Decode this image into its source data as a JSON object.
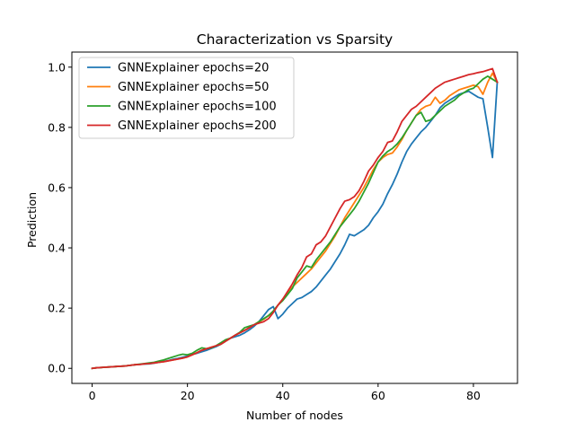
{
  "chart_data": {
    "type": "line",
    "title": "Characterization vs Sparsity",
    "xlabel": "Number of nodes",
    "ylabel": "Prediction",
    "xlim": [
      -4.25,
      89.25
    ],
    "ylim": [
      -0.05,
      1.05
    ],
    "xticks": [
      0,
      20,
      40,
      60,
      80
    ],
    "yticks": [
      0.0,
      0.2,
      0.4,
      0.6,
      0.8,
      1.0
    ],
    "xtick_labels": [
      "0",
      "20",
      "40",
      "60",
      "80"
    ],
    "ytick_labels": [
      "0.0",
      "0.2",
      "0.4",
      "0.6",
      "0.8",
      "1.0"
    ],
    "grid": false,
    "legend_position": "upper-left",
    "x": [
      0,
      1,
      2,
      3,
      4,
      5,
      6,
      7,
      8,
      9,
      10,
      11,
      12,
      13,
      14,
      15,
      16,
      17,
      18,
      19,
      20,
      21,
      22,
      23,
      24,
      25,
      26,
      27,
      28,
      29,
      30,
      31,
      32,
      33,
      34,
      35,
      36,
      37,
      38,
      39,
      40,
      41,
      42,
      43,
      44,
      45,
      46,
      47,
      48,
      49,
      50,
      51,
      52,
      53,
      54,
      55,
      56,
      57,
      58,
      59,
      60,
      61,
      62,
      63,
      64,
      65,
      66,
      67,
      68,
      69,
      70,
      71,
      72,
      73,
      74,
      75,
      76,
      77,
      78,
      79,
      80,
      81,
      82,
      83,
      84,
      85
    ],
    "series": [
      {
        "name": "GNNExplainer epochs=20",
        "color": "#1f77b4",
        "values": [
          0.0,
          0.002,
          0.003,
          0.004,
          0.005,
          0.006,
          0.007,
          0.008,
          0.01,
          0.012,
          0.013,
          0.014,
          0.015,
          0.017,
          0.02,
          0.023,
          0.026,
          0.03,
          0.033,
          0.037,
          0.041,
          0.046,
          0.05,
          0.055,
          0.06,
          0.066,
          0.072,
          0.08,
          0.09,
          0.1,
          0.105,
          0.11,
          0.118,
          0.128,
          0.14,
          0.155,
          0.175,
          0.195,
          0.205,
          0.165,
          0.18,
          0.2,
          0.215,
          0.23,
          0.235,
          0.245,
          0.255,
          0.27,
          0.29,
          0.31,
          0.33,
          0.355,
          0.38,
          0.41,
          0.445,
          0.44,
          0.45,
          0.46,
          0.475,
          0.5,
          0.52,
          0.545,
          0.58,
          0.61,
          0.645,
          0.685,
          0.72,
          0.745,
          0.765,
          0.785,
          0.8,
          0.82,
          0.84,
          0.865,
          0.88,
          0.89,
          0.9,
          0.91,
          0.915,
          0.92,
          0.91,
          0.9,
          0.895,
          0.8,
          0.7,
          0.95
        ]
      },
      {
        "name": "GNNExplainer epochs=50",
        "color": "#ff7f0e",
        "values": [
          0.0,
          0.002,
          0.003,
          0.004,
          0.005,
          0.006,
          0.007,
          0.008,
          0.01,
          0.012,
          0.013,
          0.015,
          0.016,
          0.018,
          0.02,
          0.022,
          0.025,
          0.028,
          0.031,
          0.034,
          0.038,
          0.045,
          0.052,
          0.06,
          0.065,
          0.07,
          0.075,
          0.08,
          0.09,
          0.1,
          0.11,
          0.118,
          0.126,
          0.135,
          0.145,
          0.155,
          0.163,
          0.175,
          0.19,
          0.21,
          0.23,
          0.25,
          0.27,
          0.285,
          0.3,
          0.315,
          0.33,
          0.35,
          0.37,
          0.39,
          0.415,
          0.44,
          0.47,
          0.5,
          0.525,
          0.55,
          0.575,
          0.6,
          0.63,
          0.66,
          0.685,
          0.7,
          0.71,
          0.715,
          0.735,
          0.76,
          0.79,
          0.815,
          0.84,
          0.86,
          0.87,
          0.875,
          0.9,
          0.88,
          0.89,
          0.905,
          0.915,
          0.925,
          0.93,
          0.935,
          0.94,
          0.935,
          0.91,
          0.95,
          0.98,
          0.95
        ]
      },
      {
        "name": "GNNExplainer epochs=100",
        "color": "#2ca02c",
        "values": [
          0.0,
          0.002,
          0.003,
          0.004,
          0.005,
          0.006,
          0.007,
          0.008,
          0.01,
          0.012,
          0.014,
          0.016,
          0.018,
          0.02,
          0.024,
          0.028,
          0.033,
          0.038,
          0.043,
          0.047,
          0.045,
          0.05,
          0.06,
          0.068,
          0.065,
          0.068,
          0.075,
          0.085,
          0.095,
          0.1,
          0.11,
          0.12,
          0.135,
          0.14,
          0.145,
          0.155,
          0.165,
          0.175,
          0.19,
          0.21,
          0.225,
          0.245,
          0.265,
          0.3,
          0.32,
          0.34,
          0.335,
          0.36,
          0.38,
          0.4,
          0.42,
          0.445,
          0.47,
          0.49,
          0.51,
          0.53,
          0.555,
          0.585,
          0.615,
          0.65,
          0.685,
          0.705,
          0.72,
          0.73,
          0.745,
          0.765,
          0.79,
          0.815,
          0.84,
          0.85,
          0.82,
          0.825,
          0.84,
          0.855,
          0.87,
          0.88,
          0.89,
          0.905,
          0.915,
          0.925,
          0.93,
          0.945,
          0.96,
          0.97,
          0.96,
          0.95
        ]
      },
      {
        "name": "GNNExplainer epochs=200",
        "color": "#d62728",
        "values": [
          0.0,
          0.002,
          0.003,
          0.004,
          0.005,
          0.006,
          0.007,
          0.008,
          0.01,
          0.012,
          0.013,
          0.015,
          0.016,
          0.018,
          0.02,
          0.022,
          0.025,
          0.028,
          0.031,
          0.034,
          0.038,
          0.045,
          0.052,
          0.06,
          0.065,
          0.07,
          0.075,
          0.08,
          0.09,
          0.1,
          0.11,
          0.118,
          0.126,
          0.135,
          0.145,
          0.15,
          0.155,
          0.165,
          0.185,
          0.21,
          0.23,
          0.255,
          0.28,
          0.31,
          0.335,
          0.37,
          0.38,
          0.41,
          0.42,
          0.44,
          0.47,
          0.5,
          0.53,
          0.555,
          0.56,
          0.57,
          0.59,
          0.62,
          0.655,
          0.675,
          0.7,
          0.72,
          0.75,
          0.755,
          0.785,
          0.82,
          0.84,
          0.86,
          0.87,
          0.885,
          0.9,
          0.915,
          0.93,
          0.94,
          0.95,
          0.955,
          0.96,
          0.965,
          0.97,
          0.975,
          0.978,
          0.982,
          0.985,
          0.99,
          0.995,
          0.95
        ]
      }
    ]
  }
}
